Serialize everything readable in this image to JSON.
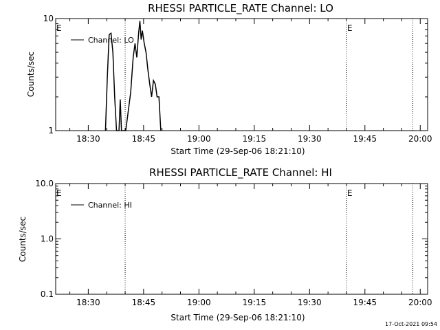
{
  "stamp": "17-Oct-2021 09:54",
  "chart_data": [
    {
      "type": "line",
      "title": "RHESSI PARTICLE_RATE Channel: LO",
      "xlabel": "Start Time (29-Sep-06 18:21:10)",
      "ylabel": "Counts/sec",
      "yscale": "log",
      "ylim": [
        1,
        10
      ],
      "xlim": [
        "18:21:10",
        "20:02:00"
      ],
      "xticks": [
        "18:30",
        "18:45",
        "19:00",
        "19:15",
        "19:30",
        "19:45",
        "20:00"
      ],
      "yticks": [
        "1",
        "10"
      ],
      "legend": "Channel: LO",
      "legend_position": "top-left",
      "markers": [
        {
          "time": "18:40:00",
          "label": "E"
        },
        {
          "time": "19:40:00",
          "label": "E"
        },
        {
          "time": "19:58:00",
          "label": ""
        }
      ],
      "series": [
        {
          "name": "Channel: LO",
          "color": "#000000",
          "points": [
            [
              "18:34:40",
              1.0
            ],
            [
              "18:35:10",
              3.0
            ],
            [
              "18:35:40",
              7.2
            ],
            [
              "18:36:10",
              7.4
            ],
            [
              "18:36:40",
              5.0
            ],
            [
              "18:37:10",
              2.0
            ],
            [
              "18:37:40",
              1.0
            ],
            [
              "18:38:20",
              1.0
            ],
            [
              "18:38:40",
              1.9
            ],
            [
              "18:39:00",
              1.0
            ],
            [
              "18:39:40",
              1.0
            ],
            [
              "18:40:10",
              1.0
            ],
            [
              "18:41:30",
              2.2
            ],
            [
              "18:42:10",
              4.5
            ],
            [
              "18:42:40",
              6.0
            ],
            [
              "18:43:10",
              4.5
            ],
            [
              "18:43:40",
              7.5
            ],
            [
              "18:44:00",
              9.5
            ],
            [
              "18:44:20",
              6.5
            ],
            [
              "18:44:40",
              7.8
            ],
            [
              "18:45:10",
              6.0
            ],
            [
              "18:45:40",
              5.0
            ],
            [
              "18:46:10",
              3.5
            ],
            [
              "18:46:40",
              2.6
            ],
            [
              "18:47:10",
              2.0
            ],
            [
              "18:47:40",
              2.8
            ],
            [
              "18:48:10",
              2.6
            ],
            [
              "18:48:40",
              2.0
            ],
            [
              "18:49:10",
              2.0
            ],
            [
              "18:49:40",
              1.0
            ]
          ]
        }
      ]
    },
    {
      "type": "line",
      "title": "RHESSI PARTICLE_RATE Channel: HI",
      "xlabel": "Start Time (29-Sep-06 18:21:10)",
      "ylabel": "Counts/sec",
      "yscale": "log",
      "ylim": [
        0.1,
        10
      ],
      "xlim": [
        "18:21:10",
        "20:02:00"
      ],
      "xticks": [
        "18:30",
        "18:45",
        "19:00",
        "19:15",
        "19:30",
        "19:45",
        "20:00"
      ],
      "yticks": [
        "0.1",
        "1.0",
        "10.0"
      ],
      "legend": "Channel: HI",
      "legend_position": "top-left",
      "markers": [
        {
          "time": "18:40:00",
          "label": "E"
        },
        {
          "time": "19:40:00",
          "label": "E"
        },
        {
          "time": "19:58:00",
          "label": ""
        }
      ],
      "series": [
        {
          "name": "Channel: HI",
          "color": "#000000",
          "points": []
        }
      ]
    }
  ]
}
